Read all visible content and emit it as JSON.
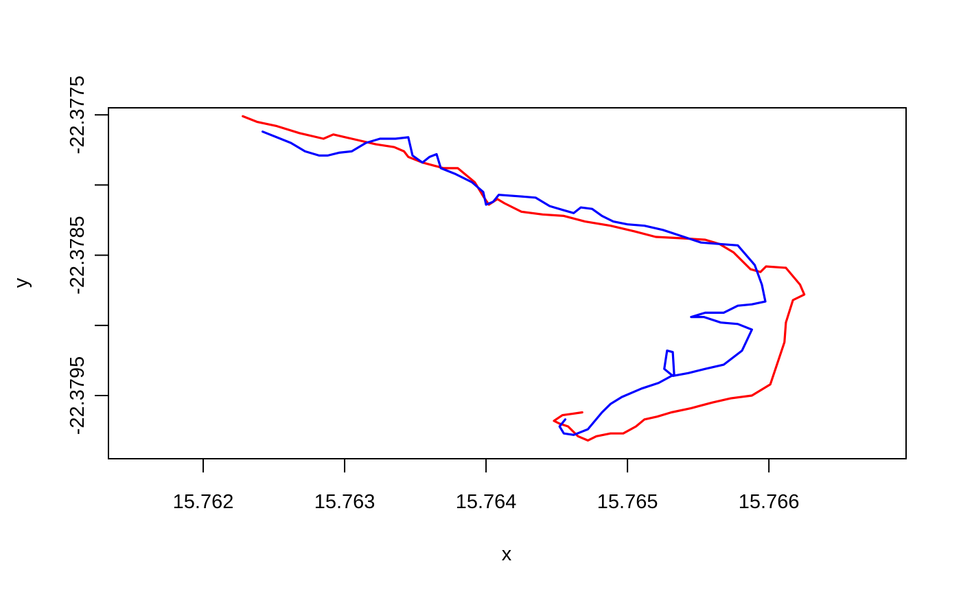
{
  "chart_data": {
    "type": "line",
    "title": "",
    "xlabel": "x",
    "ylabel": "y",
    "xlim": [
      15.76133,
      15.76697
    ],
    "ylim": [
      -22.37995,
      -22.37745
    ],
    "x_ticks": [
      15.762,
      15.763,
      15.764,
      15.765,
      15.766
    ],
    "x_tick_labels": [
      "15.762",
      "15.763",
      "15.764",
      "15.765",
      "15.766"
    ],
    "y_ticks": [
      -22.3775,
      -22.378,
      -22.3785,
      -22.379,
      -22.3795
    ],
    "y_tick_labels": [
      "-22.3775",
      "",
      "-22.3785",
      "",
      "-22.3795"
    ],
    "grid": false,
    "legend": "none",
    "series": [
      {
        "color": "#ff0000",
        "points": [
          [
            15.76228,
            -22.37751
          ],
          [
            15.76238,
            -22.37755
          ],
          [
            15.76252,
            -22.37758
          ],
          [
            15.76268,
            -22.37763
          ],
          [
            15.76285,
            -22.37767
          ],
          [
            15.76292,
            -22.37764
          ],
          [
            15.76305,
            -22.37767
          ],
          [
            15.76322,
            -22.37771
          ],
          [
            15.76335,
            -22.37773
          ],
          [
            15.76342,
            -22.37776
          ],
          [
            15.76345,
            -22.3778
          ],
          [
            15.76355,
            -22.37784
          ],
          [
            15.7637,
            -22.37788
          ],
          [
            15.7638,
            -22.37788
          ],
          [
            15.76392,
            -22.37798
          ],
          [
            15.76398,
            -22.37808
          ],
          [
            15.76402,
            -22.37814
          ],
          [
            15.76408,
            -22.3781
          ],
          [
            15.76413,
            -22.37813
          ],
          [
            15.76425,
            -22.37819
          ],
          [
            15.7644,
            -22.37821
          ],
          [
            15.76455,
            -22.37822
          ],
          [
            15.7647,
            -22.37826
          ],
          [
            15.76488,
            -22.37829
          ],
          [
            15.76505,
            -22.37833
          ],
          [
            15.7652,
            -22.37837
          ],
          [
            15.7654,
            -22.37838
          ],
          [
            15.76555,
            -22.37839
          ],
          [
            15.76565,
            -22.37842
          ],
          [
            15.76575,
            -22.37848
          ],
          [
            15.76587,
            -22.3786
          ],
          [
            15.76594,
            -22.37862
          ],
          [
            15.76598,
            -22.37858
          ],
          [
            15.76612,
            -22.37859
          ],
          [
            15.76622,
            -22.37871
          ],
          [
            15.76625,
            -22.37878
          ],
          [
            15.76617,
            -22.37882
          ],
          [
            15.76612,
            -22.37898
          ],
          [
            15.76611,
            -22.37912
          ],
          [
            15.76606,
            -22.37927
          ],
          [
            15.76601,
            -22.37942
          ],
          [
            15.76588,
            -22.3795
          ],
          [
            15.76573,
            -22.37952
          ],
          [
            15.7656,
            -22.37955
          ],
          [
            15.76545,
            -22.37959
          ],
          [
            15.76531,
            -22.37962
          ],
          [
            15.76521,
            -22.37965
          ],
          [
            15.76512,
            -22.37967
          ],
          [
            15.76506,
            -22.37972
          ],
          [
            15.76497,
            -22.37977
          ],
          [
            15.76488,
            -22.37977
          ],
          [
            15.76478,
            -22.37979
          ],
          [
            15.76472,
            -22.37982
          ],
          [
            15.76465,
            -22.37979
          ],
          [
            15.76458,
            -22.37972
          ],
          [
            15.76452,
            -22.3797
          ],
          [
            15.76448,
            -22.37968
          ],
          [
            15.76454,
            -22.37964
          ],
          [
            15.76461,
            -22.37963
          ],
          [
            15.76468,
            -22.37962
          ]
        ]
      },
      {
        "color": "#0000ff",
        "points": [
          [
            15.76242,
            -22.37762
          ],
          [
            15.76252,
            -22.37766
          ],
          [
            15.76262,
            -22.3777
          ],
          [
            15.76272,
            -22.37776
          ],
          [
            15.76282,
            -22.37779
          ],
          [
            15.76288,
            -22.37779
          ],
          [
            15.76296,
            -22.37777
          ],
          [
            15.76305,
            -22.37776
          ],
          [
            15.76315,
            -22.3777
          ],
          [
            15.76325,
            -22.37767
          ],
          [
            15.76336,
            -22.37767
          ],
          [
            15.76345,
            -22.37766
          ],
          [
            15.76348,
            -22.37779
          ],
          [
            15.76355,
            -22.37784
          ],
          [
            15.7636,
            -22.3778
          ],
          [
            15.76365,
            -22.37778
          ],
          [
            15.76368,
            -22.37788
          ],
          [
            15.76378,
            -22.37792
          ],
          [
            15.7639,
            -22.37798
          ],
          [
            15.76398,
            -22.37805
          ],
          [
            15.764,
            -22.37814
          ],
          [
            15.76405,
            -22.37812
          ],
          [
            15.76409,
            -22.37807
          ],
          [
            15.76423,
            -22.37808
          ],
          [
            15.76435,
            -22.37809
          ],
          [
            15.76445,
            -22.37815
          ],
          [
            15.76455,
            -22.37818
          ],
          [
            15.76462,
            -22.3782
          ],
          [
            15.76467,
            -22.37816
          ],
          [
            15.76475,
            -22.37817
          ],
          [
            15.76482,
            -22.37822
          ],
          [
            15.7649,
            -22.37826
          ],
          [
            15.765,
            -22.37828
          ],
          [
            15.76512,
            -22.37829
          ],
          [
            15.76525,
            -22.37832
          ],
          [
            15.7654,
            -22.37837
          ],
          [
            15.76552,
            -22.37841
          ],
          [
            15.76565,
            -22.37842
          ],
          [
            15.76578,
            -22.37843
          ],
          [
            15.7659,
            -22.37857
          ],
          [
            15.76595,
            -22.37871
          ],
          [
            15.765975,
            -22.37883
          ],
          [
            15.76588,
            -22.37885
          ],
          [
            15.76578,
            -22.37886
          ],
          [
            15.76568,
            -22.37891
          ],
          [
            15.76555,
            -22.37891
          ],
          [
            15.76545,
            -22.37894
          ],
          [
            15.76554,
            -22.37894
          ],
          [
            15.76566,
            -22.37898
          ],
          [
            15.76578,
            -22.37899
          ],
          [
            15.76588,
            -22.37903
          ],
          [
            15.76581,
            -22.37918
          ],
          [
            15.76568,
            -22.37928
          ],
          [
            15.76555,
            -22.37931
          ],
          [
            15.76543,
            -22.37934
          ],
          [
            15.76532,
            -22.37936
          ],
          [
            15.76526,
            -22.37931
          ],
          [
            15.76528,
            -22.37918
          ],
          [
            15.76532,
            -22.37919
          ],
          [
            15.76533,
            -22.37935
          ],
          [
            15.76522,
            -22.37941
          ],
          [
            15.7651,
            -22.37945
          ],
          [
            15.76496,
            -22.37951
          ],
          [
            15.76488,
            -22.37956
          ],
          [
            15.76482,
            -22.37962
          ],
          [
            15.76472,
            -22.37974
          ],
          [
            15.76462,
            -22.37978
          ],
          [
            15.76455,
            -22.37977
          ],
          [
            15.76452,
            -22.37972
          ],
          [
            15.76456,
            -22.37967
          ]
        ]
      }
    ]
  }
}
